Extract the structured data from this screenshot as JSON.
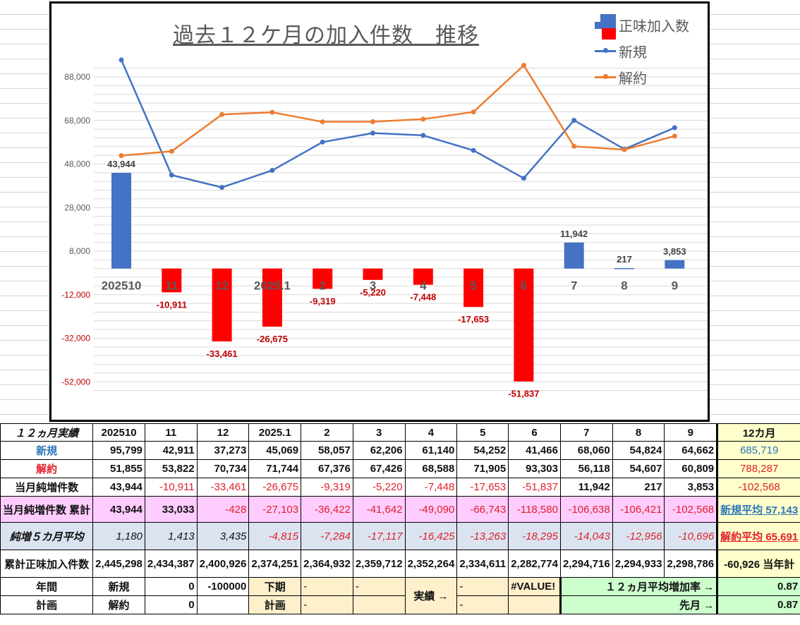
{
  "chart_data": {
    "type": "bar",
    "title": "過去１２ケ月の加入件数　推移",
    "categories": [
      "202510",
      "11",
      "12",
      "2025.1",
      "2",
      "3",
      "4",
      "5",
      "6",
      "7",
      "8",
      "9"
    ],
    "series": [
      {
        "name": "正味加入数",
        "type": "bar",
        "values": [
          43944,
          -10911,
          -33461,
          -26675,
          -9319,
          -5220,
          -7448,
          -17653,
          -51837,
          11942,
          217,
          3853
        ],
        "positive_color": "#4472c4",
        "negative_color": "#ff0000"
      },
      {
        "name": "新規",
        "type": "line",
        "values": [
          95799,
          42911,
          37273,
          45069,
          58057,
          62206,
          61140,
          54252,
          41466,
          68060,
          54824,
          64662
        ],
        "color": "#4472c4"
      },
      {
        "name": "解約",
        "type": "line",
        "values": [
          51855,
          53822,
          70734,
          71744,
          67376,
          67426,
          68588,
          71905,
          93303,
          56118,
          54607,
          60809
        ],
        "color": "#ed7d31"
      }
    ],
    "y_ticks": [
      "88,000",
      "68,000",
      "48,000",
      "28,000",
      "8,000",
      "-12,000",
      "-32,000",
      "-52,000"
    ],
    "y_tick_values": [
      88000,
      68000,
      48000,
      28000,
      8000,
      -12000,
      -32000,
      -52000
    ],
    "ylim": [
      -64000,
      100000
    ],
    "xlabel": "",
    "ylabel": "",
    "grid": true,
    "legend_position": "top-right",
    "data_labels": [
      "43,944",
      "-10,911",
      "-33,461",
      "-26,675",
      "-9,319",
      "-5,220",
      "-7,448",
      "-17,653",
      "-51,837",
      "11,942",
      "217",
      "3,853"
    ]
  },
  "chart": {
    "title": "過去１２ケ月の加入件数　推移",
    "legend": [
      {
        "label": "正味加入数",
        "icon": "bar-swatch-icon"
      },
      {
        "label": "新規",
        "icon": "line-marker-icon"
      },
      {
        "label": "解約",
        "icon": "line-marker-icon"
      }
    ]
  },
  "table": {
    "header": {
      "label": "１２ヵ月実績",
      "months": [
        "202510",
        "11",
        "12",
        "2025.1",
        "2",
        "3",
        "4",
        "5",
        "6",
        "7",
        "8",
        "9"
      ],
      "total": "12カ月"
    },
    "rows": {
      "new": {
        "label": "新規",
        "values": [
          "95,799",
          "42,911",
          "37,273",
          "45,069",
          "58,057",
          "62,206",
          "61,140",
          "54,252",
          "41,466",
          "68,060",
          "54,824",
          "64,662"
        ],
        "total": "685,719"
      },
      "cancel": {
        "label": "解約",
        "values": [
          "51,855",
          "53,822",
          "70,734",
          "71,744",
          "67,376",
          "67,426",
          "68,588",
          "71,905",
          "93,303",
          "56,118",
          "54,607",
          "60,809"
        ],
        "total": "788,287"
      },
      "net": {
        "label": "当月純増件数",
        "values": [
          "43,944",
          "-10,911",
          "-33,461",
          "-26,675",
          "-9,319",
          "-5,220",
          "-7,448",
          "-17,653",
          "-51,837",
          "11,942",
          "217",
          "3,853"
        ],
        "total": "-102,568"
      },
      "net_cum": {
        "label": "当月純増件数 累計",
        "values": [
          "43,944",
          "33,033",
          "-428",
          "-27,103",
          "-36,422",
          "-41,642",
          "-49,090",
          "-66,743",
          "-118,580",
          "-106,638",
          "-106,421",
          "-102,568"
        ],
        "total": "新規平均 57,143"
      },
      "avg5": {
        "label": "純増５カ月平均",
        "values": [
          "1,180",
          "1,413",
          "3,435",
          "-4,815",
          "-7,284",
          "-17,117",
          "-16,425",
          "-13,263",
          "-18,295",
          "-14,043",
          "-12,956",
          "-10,696"
        ],
        "total": "解約平均 65,691"
      },
      "cum_total": {
        "label": "累計正味加入件数",
        "values": [
          "2,445,298",
          "2,434,387",
          "2,400,926",
          "2,374,251",
          "2,364,932",
          "2,359,712",
          "2,352,264",
          "2,334,611",
          "2,282,774",
          "2,294,716",
          "2,294,933",
          "2,298,786"
        ],
        "total": "-60,926 当年計"
      }
    },
    "plan": {
      "annual_label_1": "年間",
      "annual_label_2": "計画",
      "new_label": "新規",
      "new_value": "0",
      "new_extra": "-100000",
      "cancel_label": "解約",
      "cancel_value": "0",
      "half_label_1": "下期",
      "half_label_2": "計画",
      "dash": "-",
      "actual_label": "実績 →",
      "error": "#VALUE!",
      "rate_label": "１２ヵ月平均増加率 →",
      "rate_value": "0.87",
      "last_label": "先月 →",
      "last_value": "0.87"
    }
  }
}
